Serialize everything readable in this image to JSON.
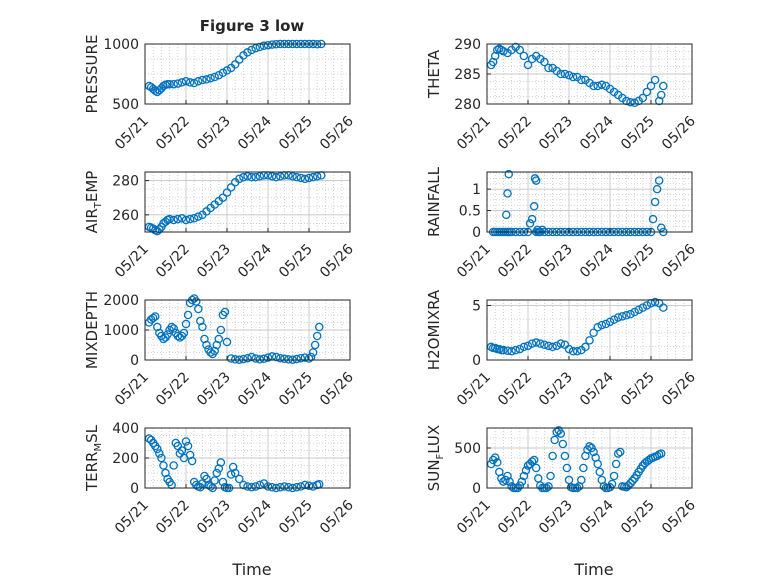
{
  "figure": {
    "title": "Figure 3 low",
    "xlabel": "Time"
  },
  "colors": {
    "series": "#0072BD",
    "axis": "#262626",
    "grid": "#c8c8c8"
  },
  "x_axis": {
    "range": [
      "05/21",
      "05/26"
    ],
    "ticks": [
      "05/21",
      "05/22",
      "05/23",
      "05/24",
      "05/25",
      "05/26"
    ]
  },
  "chart_data": [
    {
      "type": "scatter",
      "ylabel_main": "PRESSURE",
      "ylabel_sub": "",
      "ylim": [
        500,
        1000
      ],
      "yticks": [
        500,
        1000
      ],
      "x": [
        0.1,
        0.15,
        0.2,
        0.25,
        0.3,
        0.35,
        0.4,
        0.45,
        0.5,
        0.55,
        0.6,
        0.7,
        0.8,
        0.9,
        1.0,
        1.1,
        1.2,
        1.3,
        1.4,
        1.5,
        1.6,
        1.7,
        1.8,
        1.9,
        2.0,
        2.1,
        2.2,
        2.3,
        2.4,
        2.5,
        2.6,
        2.7,
        2.8,
        2.9,
        3.0,
        3.1,
        3.2,
        3.3,
        3.4,
        3.5,
        3.6,
        3.7,
        3.8,
        3.9,
        4.0,
        4.1,
        4.2,
        4.3
      ],
      "y": [
        650,
        640,
        625,
        610,
        600,
        615,
        630,
        650,
        660,
        665,
        665,
        665,
        670,
        680,
        690,
        680,
        675,
        690,
        700,
        705,
        715,
        725,
        740,
        760,
        780,
        800,
        830,
        870,
        905,
        930,
        950,
        965,
        975,
        985,
        990,
        995,
        998,
        1000,
        1000,
        1000,
        1000,
        1000,
        1000,
        1000,
        1000,
        1000,
        998,
        1000
      ]
    },
    {
      "type": "scatter",
      "ylabel_main": "THETA",
      "ylabel_sub": "",
      "ylim": [
        280,
        290
      ],
      "yticks": [
        280,
        285,
        290
      ],
      "x": [
        0.1,
        0.15,
        0.2,
        0.25,
        0.3,
        0.35,
        0.4,
        0.5,
        0.6,
        0.7,
        0.8,
        0.9,
        1.0,
        1.1,
        1.2,
        1.3,
        1.4,
        1.5,
        1.6,
        1.7,
        1.8,
        1.9,
        2.0,
        2.1,
        2.2,
        2.3,
        2.4,
        2.5,
        2.6,
        2.7,
        2.8,
        2.9,
        3.0,
        3.1,
        3.2,
        3.3,
        3.4,
        3.5,
        3.6,
        3.7,
        3.8,
        3.9,
        4.0,
        4.1,
        4.2,
        4.25,
        4.3
      ],
      "y": [
        286.5,
        287,
        288,
        289,
        289.2,
        289,
        288.8,
        288.5,
        289,
        289.5,
        289,
        288,
        286.5,
        287.5,
        288,
        287.5,
        287,
        286,
        286,
        285.5,
        285,
        285,
        284.8,
        284.5,
        284.5,
        284,
        284,
        283.5,
        283,
        283,
        283.2,
        283,
        282.5,
        282,
        281.5,
        281,
        280.5,
        280.3,
        280.2,
        280.5,
        281,
        282,
        283,
        284,
        280.5,
        281.5,
        283
      ]
    },
    {
      "type": "scatter",
      "ylabel_main": "AIR",
      "ylabel_sub": "T",
      "ylabel_tail": "EMP",
      "ylim": [
        250,
        285
      ],
      "yticks": [
        260,
        280
      ],
      "x": [
        0.1,
        0.15,
        0.2,
        0.25,
        0.3,
        0.35,
        0.4,
        0.45,
        0.5,
        0.55,
        0.6,
        0.7,
        0.8,
        0.9,
        1.0,
        1.1,
        1.2,
        1.3,
        1.4,
        1.5,
        1.6,
        1.7,
        1.8,
        1.9,
        2.0,
        2.1,
        2.2,
        2.3,
        2.4,
        2.5,
        2.6,
        2.7,
        2.8,
        2.9,
        3.0,
        3.1,
        3.2,
        3.3,
        3.4,
        3.5,
        3.6,
        3.7,
        3.8,
        3.9,
        4.0,
        4.1,
        4.2,
        4.3
      ],
      "y": [
        253,
        252.5,
        252,
        251,
        250.5,
        251.5,
        253,
        255,
        256,
        257,
        257.5,
        257,
        257.5,
        258,
        257,
        257.5,
        258,
        259,
        260,
        262,
        264,
        266,
        268,
        270,
        273,
        276,
        279,
        281,
        282,
        282.5,
        282,
        282,
        282.5,
        283,
        283,
        282.5,
        282,
        282.5,
        283,
        283,
        282.5,
        282,
        281.5,
        281,
        281.5,
        282,
        282.5,
        283
      ]
    },
    {
      "type": "scatter",
      "ylabel_main": "RAINFALL",
      "ylabel_sub": "",
      "ylim": [
        0,
        1.4
      ],
      "yticks": [
        0,
        0.5,
        1
      ],
      "x": [
        0.15,
        0.2,
        0.25,
        0.3,
        0.35,
        0.4,
        0.45,
        0.5,
        0.55,
        0.6,
        0.7,
        0.8,
        0.9,
        1.0,
        1.05,
        1.1,
        1.15,
        1.2,
        1.25,
        1.3,
        1.4,
        1.5,
        1.6,
        1.7,
        1.8,
        1.9,
        2.0,
        2.1,
        2.2,
        2.3,
        2.4,
        2.5,
        2.6,
        2.7,
        2.8,
        2.9,
        3.0,
        3.1,
        3.2,
        3.3,
        3.4,
        3.5,
        3.6,
        3.7,
        3.8,
        3.9,
        4.0,
        4.05,
        4.1,
        4.15,
        4.2,
        4.25,
        4.3,
        0.47,
        0.5,
        0.53,
        1.17,
        1.2,
        1.23,
        1.27,
        1.35
      ],
      "y": [
        0,
        0,
        0,
        0,
        0,
        0,
        0,
        0,
        0,
        0,
        0,
        0,
        0,
        0,
        0.2,
        0.3,
        0.6,
        0,
        0,
        0,
        0,
        0,
        0,
        0,
        0,
        0,
        0,
        0,
        0,
        0,
        0,
        0,
        0,
        0,
        0,
        0,
        0,
        0,
        0,
        0,
        0,
        0,
        0,
        0,
        0,
        0,
        0,
        0.3,
        0.7,
        1.0,
        1.2,
        0.1,
        0,
        0.4,
        0.9,
        1.35,
        1.25,
        1.2,
        0.05,
        0,
        0.05
      ]
    },
    {
      "type": "scatter",
      "ylabel_main": "MIXDEPTH",
      "ylabel_sub": "",
      "ylim": [
        0,
        2000
      ],
      "yticks": [
        0,
        1000,
        2000
      ],
      "x": [
        0.1,
        0.15,
        0.2,
        0.25,
        0.3,
        0.35,
        0.4,
        0.45,
        0.5,
        0.55,
        0.6,
        0.65,
        0.7,
        0.75,
        0.8,
        0.85,
        0.9,
        0.95,
        1.0,
        1.05,
        1.1,
        1.15,
        1.2,
        1.25,
        1.3,
        1.35,
        1.4,
        1.45,
        1.5,
        1.55,
        1.6,
        1.65,
        1.7,
        1.75,
        1.8,
        1.85,
        1.9,
        1.95,
        2.0,
        2.1,
        2.2,
        2.3,
        2.4,
        2.5,
        2.6,
        2.7,
        2.8,
        2.9,
        3.0,
        3.1,
        3.2,
        3.3,
        3.4,
        3.5,
        3.6,
        3.7,
        3.8,
        3.9,
        4.0,
        4.05,
        4.1,
        4.15,
        4.2,
        4.25
      ],
      "y": [
        1250,
        1350,
        1400,
        1450,
        1100,
        900,
        800,
        700,
        750,
        850,
        1000,
        1100,
        1050,
        900,
        800,
        750,
        800,
        900,
        1200,
        1500,
        1900,
        2000,
        2050,
        1950,
        1700,
        1300,
        1100,
        700,
        500,
        350,
        250,
        200,
        300,
        500,
        700,
        1000,
        1500,
        1600,
        600,
        50,
        20,
        10,
        30,
        60,
        100,
        50,
        20,
        40,
        80,
        120,
        100,
        60,
        40,
        20,
        10,
        30,
        60,
        80,
        50,
        100,
        250,
        500,
        800,
        1100
      ]
    },
    {
      "type": "scatter",
      "ylabel_main": "H2OMIXRA",
      "ylabel_sub": "",
      "ylim": [
        0,
        5.5
      ],
      "yticks": [
        0,
        5
      ],
      "x": [
        0.1,
        0.15,
        0.2,
        0.25,
        0.3,
        0.35,
        0.4,
        0.5,
        0.6,
        0.7,
        0.8,
        0.9,
        1.0,
        1.1,
        1.2,
        1.3,
        1.4,
        1.5,
        1.6,
        1.7,
        1.8,
        1.9,
        2.0,
        2.1,
        2.2,
        2.3,
        2.4,
        2.5,
        2.6,
        2.7,
        2.8,
        2.9,
        3.0,
        3.1,
        3.2,
        3.3,
        3.4,
        3.5,
        3.6,
        3.7,
        3.8,
        3.9,
        4.0,
        4.1,
        4.2,
        4.3
      ],
      "y": [
        1.2,
        1.1,
        1.1,
        1.0,
        1.0,
        0.9,
        0.9,
        0.85,
        0.8,
        0.9,
        1.0,
        1.2,
        1.3,
        1.5,
        1.6,
        1.5,
        1.4,
        1.3,
        1.2,
        1.3,
        1.5,
        1.4,
        1.0,
        0.8,
        0.8,
        0.9,
        1.2,
        1.8,
        2.5,
        3.0,
        3.2,
        3.3,
        3.5,
        3.7,
        3.9,
        4.0,
        4.1,
        4.2,
        4.4,
        4.6,
        4.8,
        5.0,
        5.2,
        5.3,
        5.2,
        4.8
      ]
    },
    {
      "type": "scatter",
      "ylabel_main": "TERR",
      "ylabel_sub": "M",
      "ylabel_tail": "SL",
      "ylim": [
        0,
        400
      ],
      "yticks": [
        0,
        200,
        400
      ],
      "x": [
        0.1,
        0.15,
        0.2,
        0.25,
        0.3,
        0.35,
        0.4,
        0.45,
        0.5,
        0.55,
        0.6,
        0.65,
        0.7,
        0.75,
        0.8,
        0.85,
        0.9,
        0.95,
        1.0,
        1.05,
        1.1,
        1.15,
        1.2,
        1.25,
        1.3,
        1.35,
        1.4,
        1.45,
        1.5,
        1.55,
        1.6,
        1.65,
        1.7,
        1.75,
        1.8,
        1.85,
        1.9,
        1.95,
        2.0,
        2.05,
        2.1,
        2.15,
        2.2,
        2.3,
        2.4,
        2.5,
        2.6,
        2.7,
        2.8,
        2.9,
        3.0,
        3.1,
        3.2,
        3.3,
        3.4,
        3.5,
        3.6,
        3.7,
        3.8,
        3.9,
        4.0,
        4.1,
        4.2,
        4.25
      ],
      "y": [
        330,
        320,
        300,
        280,
        260,
        230,
        200,
        150,
        100,
        60,
        40,
        20,
        150,
        300,
        280,
        230,
        250,
        200,
        310,
        280,
        220,
        180,
        40,
        20,
        10,
        5,
        30,
        80,
        60,
        20,
        10,
        0,
        50,
        100,
        130,
        170,
        40,
        5,
        0,
        0,
        90,
        140,
        100,
        60,
        20,
        10,
        5,
        10,
        20,
        30,
        10,
        5,
        0,
        5,
        10,
        5,
        0,
        5,
        10,
        20,
        15,
        10,
        20,
        25
      ]
    },
    {
      "type": "scatter",
      "ylabel_main": "SUN",
      "ylabel_sub": "F",
      "ylabel_tail": "LUX",
      "ylim": [
        0,
        750
      ],
      "yticks": [
        0,
        500
      ],
      "x": [
        0.1,
        0.15,
        0.2,
        0.25,
        0.3,
        0.35,
        0.4,
        0.45,
        0.5,
        0.55,
        0.6,
        0.65,
        0.7,
        0.75,
        0.8,
        0.85,
        0.9,
        0.95,
        1.0,
        1.05,
        1.1,
        1.15,
        1.2,
        1.25,
        1.3,
        1.35,
        1.4,
        1.45,
        1.5,
        1.55,
        1.6,
        1.65,
        1.7,
        1.75,
        1.8,
        1.85,
        1.9,
        1.95,
        2.0,
        2.05,
        2.1,
        2.15,
        2.2,
        2.25,
        2.3,
        2.35,
        2.4,
        2.45,
        2.5,
        2.55,
        2.6,
        2.65,
        2.7,
        2.75,
        2.8,
        2.85,
        2.9,
        2.95,
        3.0,
        3.05,
        3.1,
        3.15,
        3.2,
        3.25,
        3.3,
        3.35,
        3.4,
        3.45,
        3.5,
        3.55,
        3.6,
        3.65,
        3.7,
        3.75,
        3.8,
        3.85,
        3.9,
        3.95,
        4.0,
        4.05,
        4.1,
        4.15,
        4.2,
        4.25
      ],
      "y": [
        300,
        350,
        380,
        320,
        200,
        120,
        80,
        100,
        150,
        80,
        20,
        0,
        0,
        0,
        30,
        80,
        150,
        220,
        280,
        300,
        330,
        350,
        250,
        120,
        30,
        0,
        0,
        0,
        20,
        150,
        400,
        600,
        700,
        720,
        680,
        550,
        400,
        250,
        100,
        10,
        0,
        0,
        0,
        20,
        100,
        250,
        400,
        480,
        520,
        500,
        450,
        380,
        300,
        200,
        100,
        20,
        0,
        0,
        10,
        50,
        150,
        300,
        430,
        450,
        20,
        15,
        10,
        30,
        60,
        90,
        120,
        160,
        200,
        240,
        280,
        310,
        330,
        350,
        370,
        380,
        390,
        400,
        420,
        430
      ]
    }
  ]
}
